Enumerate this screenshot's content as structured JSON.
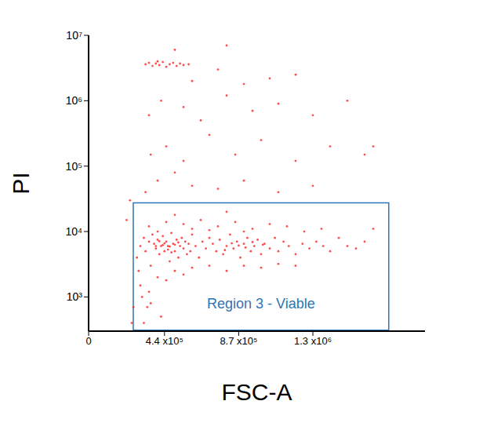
{
  "chart_data": {
    "type": "scatter",
    "x_label": "FSC-A",
    "y_label": "PI",
    "color": "#ff2020",
    "marker": "circle",
    "log": "y",
    "grid": false,
    "xlim": [
      0,
      1950000
    ],
    "xticks": [
      0,
      {
        "value": 440000,
        "label": "4.4 x10⁵"
      },
      {
        "value": 870000,
        "label": "8.7 x10⁵"
      },
      {
        "value": 1300000,
        "label": "1.3 x10⁶"
      }
    ],
    "ylim": [
      300,
      10000000
    ],
    "yticks": [
      {
        "value": 1000,
        "label": "10³"
      },
      {
        "value": 10000,
        "label": "10⁴"
      },
      {
        "value": 100000,
        "label": "10⁵"
      },
      {
        "value": 1000000,
        "label": "10⁶"
      },
      {
        "value": 10000000,
        "label": "10⁷"
      }
    ],
    "annotations": [
      {
        "text": "Region 3 - Viable",
        "x1": 259000,
        "x2": 1740000,
        "y1": 310,
        "y2": 27500,
        "color": "#2e75b6"
      }
    ],
    "x": [
      280000,
      300000,
      320000,
      330000,
      350000,
      360000,
      370000,
      380000,
      390000,
      400000,
      410000,
      420000,
      430000,
      440000,
      450000,
      460000,
      470000,
      480000,
      490000,
      500000,
      510000,
      520000,
      530000,
      540000,
      550000,
      560000,
      570000,
      580000,
      590000,
      600000,
      620000,
      640000,
      660000,
      680000,
      700000,
      720000,
      740000,
      760000,
      780000,
      800000,
      820000,
      840000,
      860000,
      880000,
      900000,
      920000,
      940000,
      960000,
      980000,
      1000000,
      1020000,
      1050000,
      1080000,
      1100000,
      1130000,
      1160000,
      1200000,
      1240000,
      1280000,
      1320000,
      1360000,
      1400000,
      1450000,
      1500000,
      1550000,
      1600000,
      1650000,
      300000,
      310000,
      340000,
      320000,
      290000,
      400000,
      500000,
      600000,
      700000,
      800000,
      900000,
      1000000,
      1100000,
      1200000,
      350000,
      450000,
      550000,
      420000,
      360000,
      350000,
      450000,
      550000,
      650000,
      750000,
      850000,
      950000,
      1050000,
      1150000,
      1250000,
      1350000,
      500000,
      800000,
      400000,
      600000,
      700000,
      900000,
      430000,
      460000,
      410000,
      520000,
      470000,
      870000,
      910000,
      830000,
      790000,
      950000,
      1010000,
      440000,
      500000,
      390000,
      480000,
      330000,
      400000,
      500000,
      600000,
      750000,
      900000,
      1100000,
      1300000,
      360000,
      450000,
      550000,
      700000,
      850000,
      1000000,
      1200000,
      1400000,
      1600000,
      350000,
      420000,
      550000,
      650000,
      800000,
      950000,
      1100000,
      1300000,
      1500000,
      600000,
      900000,
      1200000,
      750000,
      1050000,
      500000,
      800000,
      400000,
      1650000,
      220000,
      240000,
      330000,
      350000,
      370000,
      390000,
      410000,
      430000,
      450000,
      470000,
      490000,
      510000,
      530000,
      550000,
      580000,
      250000,
      260000
    ],
    "values": [
      4000,
      6000,
      8000,
      5000,
      7000,
      3000,
      9000,
      6500,
      5500,
      7500,
      4500,
      6000,
      8500,
      5000,
      7000,
      6000,
      3500,
      9500,
      6500,
      5000,
      7500,
      4000,
      6000,
      8000,
      5500,
      7000,
      4500,
      6500,
      5000,
      9000,
      6000,
      4000,
      7000,
      5500,
      8000,
      6500,
      5000,
      7500,
      4500,
      6000,
      9000,
      5500,
      7000,
      4000,
      6500,
      8000,
      5000,
      6000,
      7500,
      4500,
      6500,
      5500,
      8000,
      5000,
      7000,
      6000,
      4500,
      6500,
      5500,
      7000,
      6000,
      5000,
      8000,
      6000,
      5500,
      7000,
      11000,
      1500,
      1000,
      700,
      400,
      2500,
      2000,
      2500,
      2800,
      3000,
      2500,
      3000,
      2800,
      3200,
      3000,
      1200,
      1800,
      2200,
      500,
      800,
      12000,
      14000,
      13000,
      15000,
      12000,
      14000,
      11000,
      13000,
      12000,
      10000,
      11000,
      18000,
      20000,
      10000,
      11000,
      10500,
      10000,
      6200,
      5300,
      7100,
      6800,
      5900,
      6100,
      5700,
      6600,
      5200,
      6900,
      6300,
      6600,
      6300,
      6000,
      4800,
      40000,
      60000,
      80000,
      50000,
      45000,
      60000,
      40000,
      50000,
      150000,
      200000,
      120000,
      300000,
      150000,
      250000,
      120000,
      200000,
      150000,
      600000,
      1000000,
      800000,
      500000,
      1200000,
      700000,
      900000,
      600000,
      1000000,
      2000000,
      1800000,
      2500000,
      3000000,
      2200000,
      6000000,
      7000000,
      4000000,
      200000,
      15000,
      30000,
      3600000,
      3800000,
      3400000,
      3700000,
      3500000,
      3900000,
      3300000,
      3600000,
      3800000,
      3400000,
      3700000,
      3500000,
      3600000,
      400,
      700
    ]
  }
}
